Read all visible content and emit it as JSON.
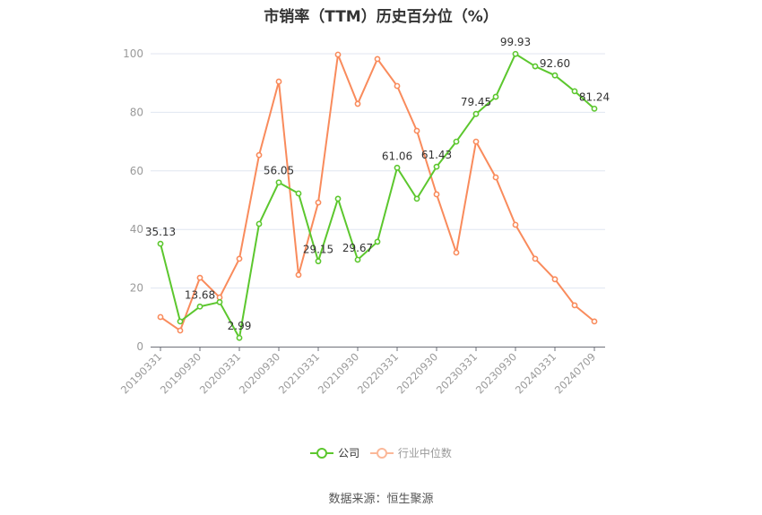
{
  "title": "市销率（TTM）历史百分位（%）",
  "source": "数据来源：恒生聚源",
  "colors": {
    "company": "#5cc72e",
    "industry": "#f98b5c",
    "industry_legend": "#fbb899",
    "grid": "#e0e6f1",
    "axis": "#6e7079",
    "tick_label": "#9a9a9a",
    "data_label": "#333333"
  },
  "legend": [
    {
      "label": "公司",
      "series": "company",
      "active": true
    },
    {
      "label": "行业中位数",
      "series": "industry",
      "active": false
    }
  ],
  "chart_data": {
    "type": "line",
    "title": "市销率（TTM）历史百分位（%）",
    "xlabel": "",
    "ylabel": "",
    "ylim": [
      0,
      100
    ],
    "yticks": [
      0,
      20,
      40,
      60,
      80,
      100
    ],
    "grid": true,
    "legend_position": "bottom",
    "x": [
      "20190331",
      "20190630",
      "20190930",
      "20191231",
      "20200331",
      "20200630",
      "20200930",
      "20201231",
      "20210331",
      "20210630",
      "20210930",
      "20211231",
      "20220331",
      "20220630",
      "20220930",
      "20221231",
      "20230331",
      "20230630",
      "20230930",
      "20231231",
      "20240331",
      "20240630",
      "20240709"
    ],
    "xtick_labels": [
      "20190331",
      "20190930",
      "20200331",
      "20200930",
      "20210331",
      "20210930",
      "20220331",
      "20220930",
      "20230331",
      "20230930",
      "20240331",
      "20240709"
    ],
    "series": [
      {
        "name": "公司",
        "values": [
          35.13,
          8.6,
          13.68,
          15.2,
          2.99,
          41.9,
          56.05,
          52.3,
          29.15,
          50.5,
          29.67,
          35.8,
          61.06,
          50.5,
          61.43,
          70.0,
          79.45,
          85.3,
          99.93,
          95.7,
          92.6,
          87.2,
          81.24
        ],
        "labels": {
          "0": "35.13",
          "2": "13.68",
          "4": "2.99",
          "6": "56.05",
          "8": "29.15",
          "10": "29.67",
          "12": "61.06",
          "14": "61.43",
          "16": "79.45",
          "18": "99.93",
          "20": "92.60",
          "22": "81.24"
        }
      },
      {
        "name": "行业中位数",
        "values": [
          10.1,
          5.5,
          23.5,
          16.8,
          30.0,
          65.4,
          90.5,
          24.5,
          49.2,
          99.7,
          82.9,
          98.2,
          89.0,
          73.7,
          52.0,
          32.1,
          70.0,
          57.8,
          41.6,
          30.0,
          23.0,
          14.1,
          8.6
        ]
      }
    ]
  }
}
